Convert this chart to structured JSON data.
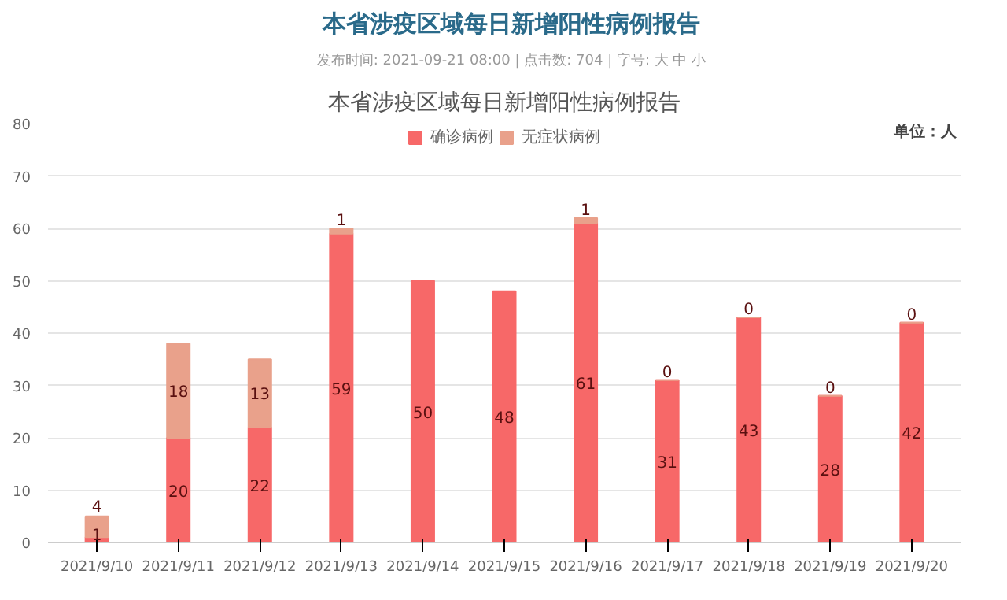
{
  "chart_data": {
    "type": "bar",
    "stacked": true,
    "title": "本省涉疫区域每日新增阳性病例报告",
    "annotations": [
      "本省涉疫区域每日新增阳性病例报告",
      "发布时间:  2021-09-21 08:00 | 点击数: 704 | 字号: 大 中 小",
      "单位：人"
    ],
    "categories": [
      "2021/9/10",
      "2021/9/11",
      "2021/9/12",
      "2021/9/13",
      "2021/9/14",
      "2021/9/15",
      "2021/9/16",
      "2021/9/17",
      "2021/9/18",
      "2021/9/19",
      "2021/9/20"
    ],
    "series": [
      {
        "name": "确诊病例",
        "color": "#f76868",
        "values": [
          1,
          20,
          22,
          59,
          50,
          48,
          61,
          31,
          43,
          28,
          42
        ]
      },
      {
        "name": "无症状病例",
        "color": "#e9a18b",
        "values": [
          4,
          18,
          13,
          1,
          null,
          null,
          1,
          0,
          0,
          0,
          0
        ]
      }
    ],
    "ylim": [
      0,
      80
    ],
    "yticks": [
      0,
      10,
      20,
      30,
      40,
      50,
      60,
      70,
      80
    ],
    "grid": "y",
    "legend": "top",
    "data_labels": true
  }
}
